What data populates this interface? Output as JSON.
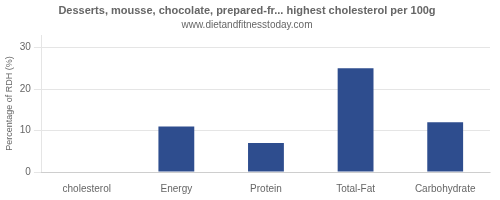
{
  "chart_data": {
    "type": "bar",
    "title": "Desserts, mousse, chocolate, prepared-fr... highest cholesterol per 100g",
    "subtitle": "www.dietandfitnesstoday.com",
    "categories": [
      "cholesterol",
      "Energy",
      "Protein",
      "Total-Fat",
      "Carbohydrate"
    ],
    "values": [
      0,
      11,
      7,
      25,
      12
    ],
    "color": "#2e4d8e",
    "ylabel": "Percentage of RDH (%)",
    "ylim": [
      0,
      33
    ],
    "yticks": [
      0,
      10,
      20,
      30
    ],
    "grid": true
  }
}
